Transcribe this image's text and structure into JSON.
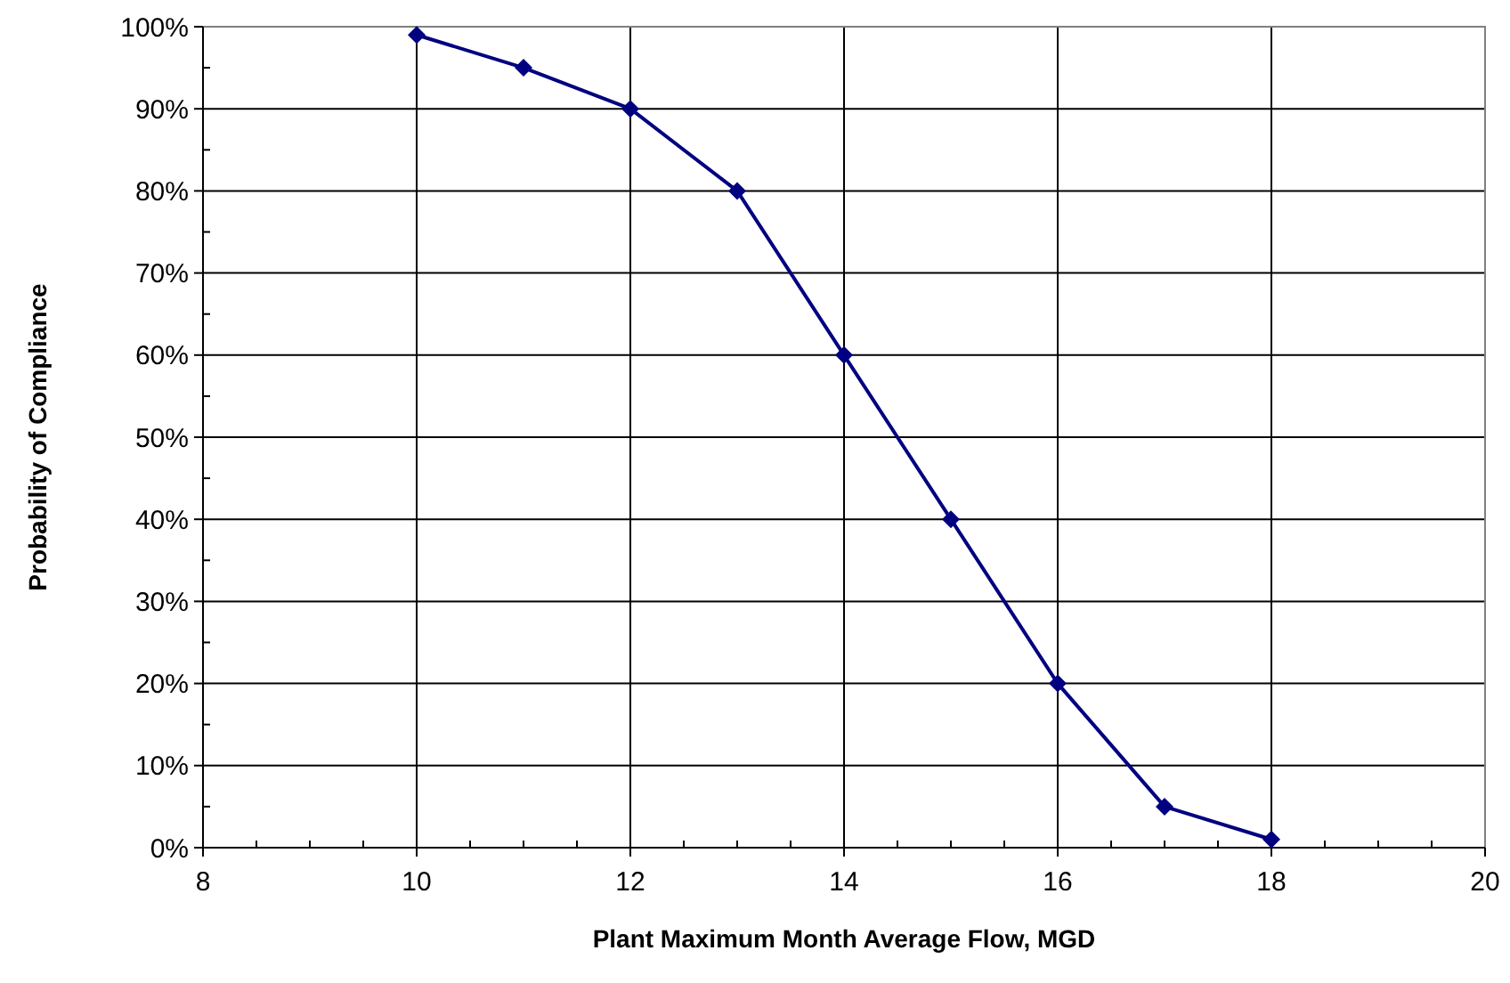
{
  "chart_data": {
    "type": "line",
    "xlabel": "Plant Maximum Month Average Flow, MGD",
    "ylabel": "Probability of Compliance",
    "x": [
      10,
      11,
      12,
      13,
      14,
      15,
      16,
      17,
      18
    ],
    "series": [
      {
        "color": "#000080",
        "values": [
          99,
          95,
          90,
          80,
          60,
          40,
          20,
          5,
          1
        ]
      }
    ],
    "xlim": [
      8,
      20
    ],
    "xticks": [
      8,
      {
        "value": 8.5,
        "label": null
      },
      {
        "value": 9,
        "label": null
      },
      {
        "value": 9.5,
        "label": null
      },
      10,
      {
        "value": 10.5,
        "label": null
      },
      {
        "value": 11,
        "label": null
      },
      {
        "value": 11.5,
        "label": null
      },
      12,
      {
        "value": 12.5,
        "label": null
      },
      {
        "value": 13,
        "label": null
      },
      {
        "value": 13.5,
        "label": null
      },
      14,
      {
        "value": 14.5,
        "label": null
      },
      {
        "value": 15,
        "label": null
      },
      {
        "value": 15.5,
        "label": null
      },
      16,
      {
        "value": 16.5,
        "label": null
      },
      {
        "value": 17,
        "label": null
      },
      {
        "value": 17.5,
        "label": null
      },
      18,
      {
        "value": 18.5,
        "label": null
      },
      {
        "value": 19,
        "label": null
      },
      {
        "value": 19.5,
        "label": null
      },
      20
    ],
    "ylim": [
      0,
      100
    ],
    "yticks": [
      {
        "value": 0,
        "label": "0%"
      },
      {
        "value": 5,
        "label": null
      },
      {
        "value": 10,
        "label": "10%"
      },
      {
        "value": 15,
        "label": null
      },
      {
        "value": 20,
        "label": "20%"
      },
      {
        "value": 25,
        "label": null
      },
      {
        "value": 30,
        "label": "30%"
      },
      {
        "value": 35,
        "label": null
      },
      {
        "value": 40,
        "label": "40%"
      },
      {
        "value": 45,
        "label": null
      },
      {
        "value": 50,
        "label": "50%"
      },
      {
        "value": 55,
        "label": null
      },
      {
        "value": 60,
        "label": "60%"
      },
      {
        "value": 65,
        "label": null
      },
      {
        "value": 70,
        "label": "70%"
      },
      {
        "value": 75,
        "label": null
      },
      {
        "value": 80,
        "label": "80%"
      },
      {
        "value": 85,
        "label": null
      },
      {
        "value": 90,
        "label": "90%"
      },
      {
        "value": 95,
        "label": null
      },
      {
        "value": 100,
        "label": "100%"
      }
    ],
    "grid": true,
    "marker": "diamond",
    "line_style": "solid"
  }
}
